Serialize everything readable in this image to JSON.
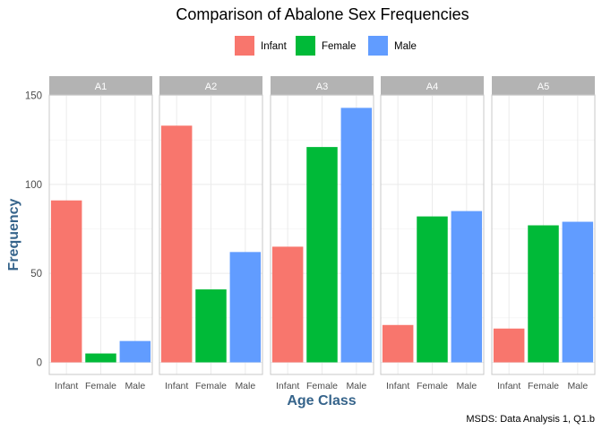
{
  "chart_data": {
    "type": "bar",
    "title": "Comparison of Abalone Sex Frequencies",
    "xlabel": "Age Class",
    "ylabel": "Frequency",
    "caption": "MSDS: Data Analysis 1, Q1.b",
    "categories": [
      "Infant",
      "Female",
      "Male"
    ],
    "colors": {
      "Infant": "#f8766d",
      "Female": "#00ba38",
      "Male": "#619cff"
    },
    "legend": {
      "placement": "top",
      "entries": [
        "Infant",
        "Female",
        "Male"
      ]
    },
    "ylim": [
      0,
      155
    ],
    "yticks": [
      0,
      50,
      100,
      150
    ],
    "grid": true,
    "facets": [
      {
        "name": "A1",
        "values": [
          91,
          5,
          12
        ]
      },
      {
        "name": "A2",
        "values": [
          133,
          41,
          62
        ]
      },
      {
        "name": "A3",
        "values": [
          65,
          121,
          143
        ]
      },
      {
        "name": "A4",
        "values": [
          21,
          82,
          85
        ]
      },
      {
        "name": "A5",
        "values": [
          19,
          77,
          79
        ]
      }
    ]
  }
}
